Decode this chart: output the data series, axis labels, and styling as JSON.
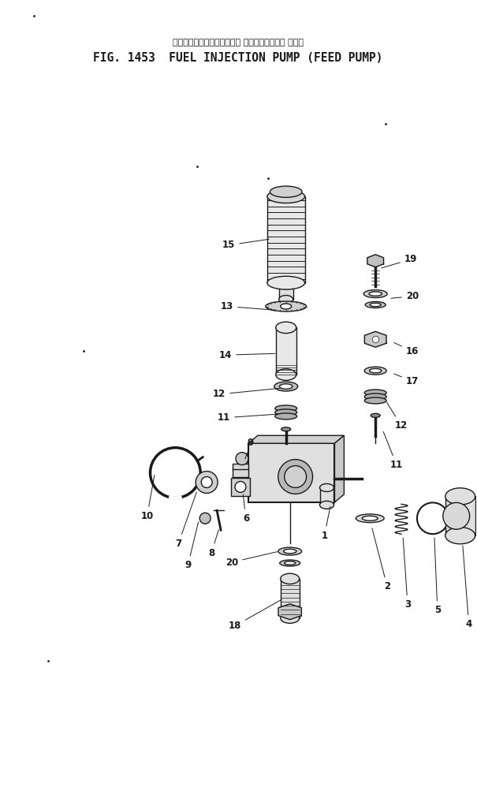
{
  "title_japanese": "フェエル　インジェクション ポンプ　フィード ポンプ",
  "title_english": "FIG. 1453  FUEL INJECTION PUMP (FEED PUMP)",
  "bg_color": "#ffffff",
  "line_color": "#1a1a1a",
  "figsize": [
    6.05,
    9.98
  ],
  "dpi": 100
}
